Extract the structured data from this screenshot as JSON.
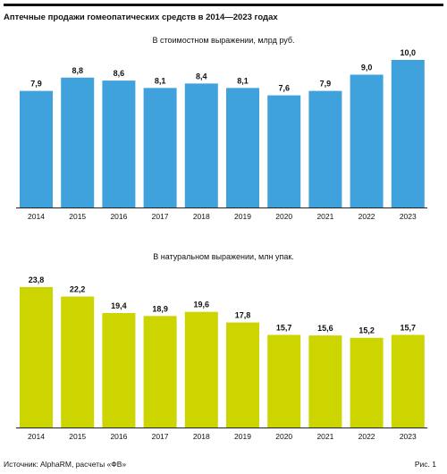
{
  "title": "Аптечные продажи гомеопатических средств в 2014—2023 годах",
  "source": "Источник: AlphaRM, расчеты «ФВ»",
  "figure_label": "Рис. 1",
  "chart_data": [
    {
      "type": "bar",
      "subtitle": "В стоимостном выражении, млрд руб.",
      "categories": [
        "2014",
        "2015",
        "2016",
        "2017",
        "2018",
        "2019",
        "2020",
        "2021",
        "2022",
        "2023"
      ],
      "values": [
        7.9,
        8.8,
        8.6,
        8.1,
        8.4,
        8.1,
        7.6,
        7.9,
        9.0,
        10.0
      ],
      "value_labels": [
        "7,9",
        "8,8",
        "8,6",
        "8,1",
        "8,4",
        "8,1",
        "7,6",
        "7,9",
        "9,0",
        "10,0"
      ],
      "color": "#3fa2dc",
      "ylim": [
        0,
        10.0
      ],
      "grid": false
    },
    {
      "type": "bar",
      "subtitle": "В натуральном выражении, млн упак.",
      "categories": [
        "2014",
        "2015",
        "2016",
        "2017",
        "2018",
        "2019",
        "2020",
        "2021",
        "2022",
        "2023"
      ],
      "values": [
        23.8,
        22.2,
        19.4,
        18.9,
        19.6,
        17.8,
        15.7,
        15.6,
        15.2,
        15.7
      ],
      "value_labels": [
        "23,8",
        "22,2",
        "19,4",
        "18,9",
        "19,6",
        "17,8",
        "15,7",
        "15,6",
        "15,2",
        "15,7"
      ],
      "color": "#cdd500",
      "ylim": [
        0,
        23.8
      ],
      "grid": false
    }
  ]
}
